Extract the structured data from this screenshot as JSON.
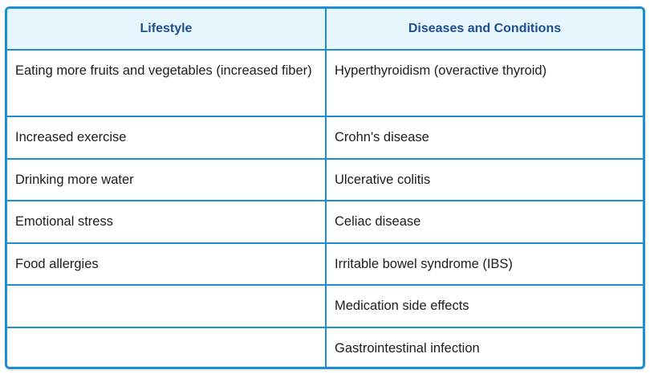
{
  "table": {
    "headers": [
      "Lifestyle",
      "Diseases and Conditions"
    ],
    "rows": [
      [
        "Eating more fruits and vegetables (increased fiber)",
        "Hyperthyroidism (overactive thyroid)"
      ],
      [
        "Increased exercise",
        "Crohn's disease"
      ],
      [
        "Drinking more water",
        "Ulcerative colitis"
      ],
      [
        "Emotional stress",
        "Celiac disease"
      ],
      [
        "Food allergies",
        "Irritable bowel syndrome (IBS)"
      ],
      [
        "",
        "Medication side effects"
      ],
      [
        "",
        "Gastrointestinal infection"
      ]
    ],
    "colors": {
      "border": "#1a8fd6",
      "header_bg": "#e7f5fd",
      "header_text": "#1d4f91",
      "body_text": "#1c1c1c"
    }
  }
}
